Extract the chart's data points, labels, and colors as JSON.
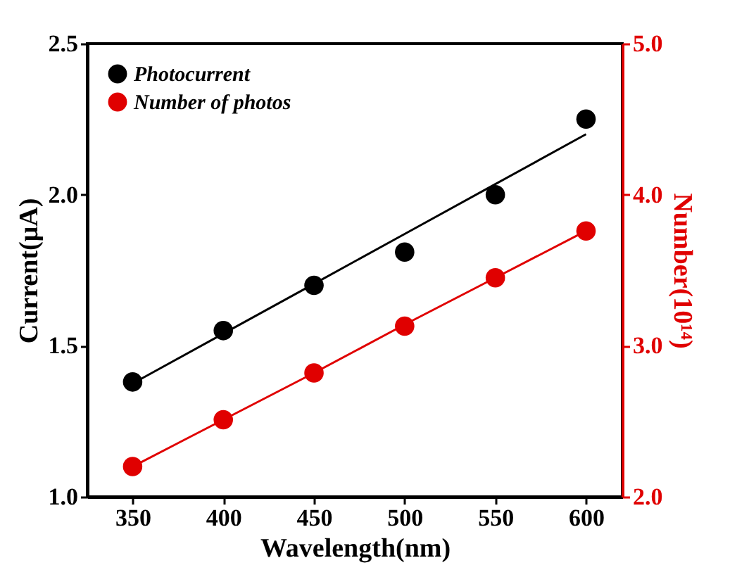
{
  "chart_data": {
    "type": "scatter",
    "xlabel": "Wavelength(nm)",
    "ylabel": "Current(μA)",
    "y2label": "Number(10¹⁴)",
    "x": [
      350,
      400,
      450,
      500,
      550,
      600
    ],
    "xlim": [
      325,
      620
    ],
    "xticks": [
      350,
      400,
      450,
      500,
      550,
      600
    ],
    "ylim": [
      1.0,
      2.5
    ],
    "yticks": [
      {
        "value": 1.0,
        "label": "1.0"
      },
      {
        "value": 1.5,
        "label": "1.5"
      },
      {
        "value": 2.0,
        "label": "2.0"
      },
      {
        "value": 2.5,
        "label": "2.5"
      }
    ],
    "y2lim": [
      2.0,
      5.0
    ],
    "y2ticks": [
      {
        "value": 2.0,
        "label": "2.0"
      },
      {
        "value": 3.0,
        "label": "3.0"
      },
      {
        "value": 4.0,
        "label": "4.0"
      },
      {
        "value": 5.0,
        "label": "5.0"
      }
    ],
    "legend": "top left",
    "marker": "circle",
    "series": [
      {
        "name": "Photocurrent",
        "color": "#000000",
        "values": [
          1.38,
          1.55,
          1.7,
          1.81,
          2.0,
          2.25
        ]
      },
      {
        "name": "Number of photos",
        "color": "#e00000",
        "axis": "y2",
        "values": [
          2.2,
          2.51,
          2.82,
          3.13,
          3.45,
          3.76
        ]
      },
      {
        "type": "line",
        "marker": "none",
        "color": "#000000",
        "values": [
          1.375,
          1.54,
          1.705,
          1.87,
          2.035,
          2.2
        ]
      },
      {
        "type": "line",
        "marker": "none",
        "color": "#e00000",
        "axis": "y2",
        "values": [
          2.2,
          2.51,
          2.82,
          3.14,
          3.45,
          3.76
        ]
      }
    ]
  }
}
